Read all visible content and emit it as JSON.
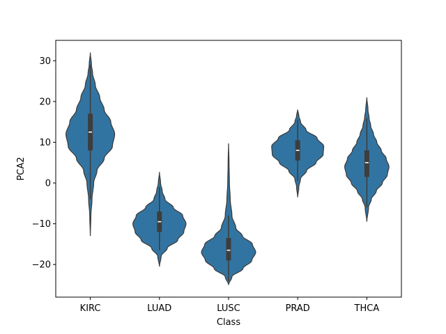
{
  "chart_data": {
    "type": "violin",
    "title": "",
    "xlabel": "Class",
    "ylabel": "PCA2",
    "ylim": [
      -28,
      35
    ],
    "yticks": [
      -20,
      -10,
      0,
      10,
      20,
      30
    ],
    "categories": [
      "KIRC",
      "LUAD",
      "LUSC",
      "PRAD",
      "THCA"
    ],
    "fill_color": "#3274a1",
    "edge_color": "#3d3d3d",
    "grid": false,
    "violins": [
      {
        "category": "KIRC",
        "min": -13,
        "q1": 8,
        "median": 12.5,
        "q3": 17,
        "max": 32,
        "whisker_low": -4,
        "whisker_high": 29,
        "profile": [
          [
            -13,
            0.0
          ],
          [
            -8,
            0.01
          ],
          [
            -4,
            0.03
          ],
          [
            0,
            0.06
          ],
          [
            3,
            0.12
          ],
          [
            6,
            0.25
          ],
          [
            9,
            0.4
          ],
          [
            12,
            0.44
          ],
          [
            15,
            0.37
          ],
          [
            18,
            0.25
          ],
          [
            21,
            0.17
          ],
          [
            24,
            0.09
          ],
          [
            27,
            0.04
          ],
          [
            29,
            0.02
          ],
          [
            32,
            0.0
          ]
        ]
      },
      {
        "category": "LUAD",
        "min": -20.5,
        "q1": -12,
        "median": -9.5,
        "q3": -7,
        "max": 2.7,
        "whisker_low": -16.5,
        "whisker_high": -1,
        "profile": [
          [
            -20.5,
            0.0
          ],
          [
            -18,
            0.03
          ],
          [
            -16,
            0.14
          ],
          [
            -14,
            0.33
          ],
          [
            -12,
            0.44
          ],
          [
            -10,
            0.48
          ],
          [
            -8,
            0.42
          ],
          [
            -6,
            0.25
          ],
          [
            -4,
            0.1
          ],
          [
            -2,
            0.05
          ],
          [
            0,
            0.02
          ],
          [
            2.7,
            0.0
          ]
        ]
      },
      {
        "category": "LUSC",
        "min": -25,
        "q1": -19,
        "median": -16.5,
        "q3": -13.5,
        "max": 9.7,
        "whisker_low": -24,
        "whisker_high": -8,
        "profile": [
          [
            -25,
            0.0
          ],
          [
            -23,
            0.06
          ],
          [
            -21,
            0.26
          ],
          [
            -19,
            0.42
          ],
          [
            -17,
            0.49
          ],
          [
            -15,
            0.43
          ],
          [
            -13,
            0.25
          ],
          [
            -11,
            0.13
          ],
          [
            -8,
            0.06
          ],
          [
            -4,
            0.03
          ],
          [
            0,
            0.015
          ],
          [
            5,
            0.008
          ],
          [
            9.7,
            0.0
          ]
        ]
      },
      {
        "category": "PRAD",
        "min": -3.5,
        "q1": 5.5,
        "median": 8,
        "q3": 10.5,
        "max": 18,
        "whisker_low": 0.5,
        "whisker_high": 15.5,
        "profile": [
          [
            -3.5,
            0.0
          ],
          [
            -1,
            0.02
          ],
          [
            1,
            0.05
          ],
          [
            3,
            0.16
          ],
          [
            5,
            0.33
          ],
          [
            7,
            0.46
          ],
          [
            9,
            0.47
          ],
          [
            11,
            0.35
          ],
          [
            13,
            0.15
          ],
          [
            15,
            0.05
          ],
          [
            16.5,
            0.02
          ],
          [
            18,
            0.0
          ]
        ]
      },
      {
        "category": "THCA",
        "min": -9.5,
        "q1": 1.5,
        "median": 5,
        "q3": 8,
        "max": 21,
        "whisker_low": -6,
        "whisker_high": 16,
        "profile": [
          [
            -9.5,
            0.0
          ],
          [
            -6,
            0.03
          ],
          [
            -4,
            0.08
          ],
          [
            -2,
            0.17
          ],
          [
            0,
            0.28
          ],
          [
            2,
            0.37
          ],
          [
            4,
            0.4
          ],
          [
            6,
            0.35
          ],
          [
            8,
            0.26
          ],
          [
            10,
            0.18
          ],
          [
            12,
            0.12
          ],
          [
            14,
            0.07
          ],
          [
            16,
            0.04
          ],
          [
            18,
            0.02
          ],
          [
            21,
            0.0
          ]
        ]
      }
    ]
  }
}
